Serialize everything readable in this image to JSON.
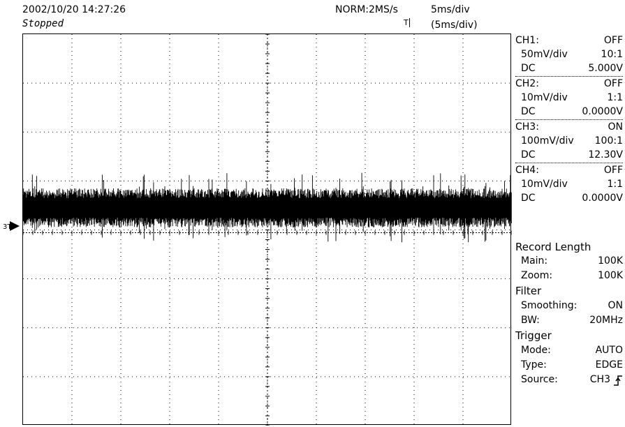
{
  "header": {
    "datetime": "2002/10/20  14:27:26",
    "status": "Stopped",
    "acquisition": "NORM:2MS/s",
    "timebase": "5ms/div",
    "timebase_zoom": "(5ms/div)"
  },
  "markers": {
    "trigger_top": "T",
    "ch_marker": "3T"
  },
  "channels": [
    {
      "name": "CH1:",
      "state": "OFF",
      "vdiv": "50mV/div",
      "probe": "10:1",
      "coupling": "DC",
      "offset": "5.000V"
    },
    {
      "name": "CH2:",
      "state": "OFF",
      "vdiv": "10mV/div",
      "probe": "1:1",
      "coupling": "DC",
      "offset": "0.0000V"
    },
    {
      "name": "CH3:",
      "state": "ON",
      "vdiv": "100mV/div",
      "probe": "100:1",
      "coupling": "DC",
      "offset": "12.30V"
    },
    {
      "name": "CH4:",
      "state": "OFF",
      "vdiv": "10mV/div",
      "probe": "1:1",
      "coupling": "DC",
      "offset": "0.0000V"
    }
  ],
  "record_length": {
    "title": "Record Length",
    "main_label": "Main:",
    "main_value": "100K",
    "zoom_label": "Zoom:",
    "zoom_value": "100K"
  },
  "filter": {
    "title": "Filter",
    "smoothing_label": "Smoothing:",
    "smoothing_value": "ON",
    "bw_label": "BW:",
    "bw_value": "20MHz"
  },
  "trigger": {
    "title": "Trigger",
    "mode_label": "Mode:",
    "mode_value": "AUTO",
    "type_label": "Type:",
    "type_value": "EDGE",
    "source_label": "Source:",
    "source_value": "CH3"
  },
  "waveform": {
    "channel": "CH3",
    "description": "noise band",
    "center_div": 0.55,
    "amplitude_div": 0.5
  }
}
